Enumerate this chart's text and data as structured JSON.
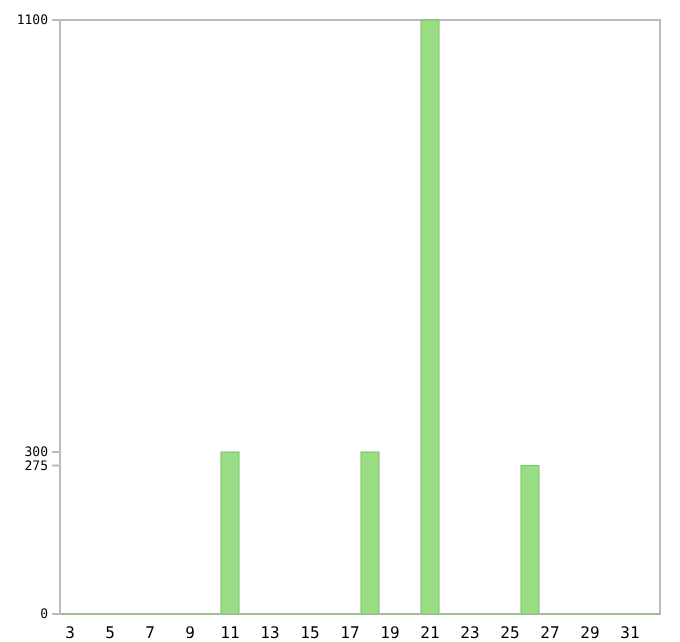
{
  "chart_data": {
    "type": "bar",
    "categories": [
      "3",
      null,
      "5",
      null,
      "7",
      null,
      "9",
      null,
      "11",
      null,
      "13",
      null,
      "15",
      null,
      "17",
      null,
      "19",
      null,
      "21",
      null,
      "23",
      null,
      "25",
      null,
      "27",
      null,
      "29",
      null,
      "31",
      null
    ],
    "values": [
      0,
      0,
      0,
      0,
      0,
      0,
      0,
      0,
      300,
      0,
      0,
      0,
      0,
      0,
      0,
      300,
      0,
      0,
      1100,
      0,
      0,
      0,
      0,
      275,
      0,
      0,
      0,
      0,
      0,
      0
    ],
    "color": "#98dc84",
    "ylim": [
      0,
      1100
    ],
    "yticks": [
      0,
      275,
      300,
      1100
    ],
    "grid": false
  }
}
